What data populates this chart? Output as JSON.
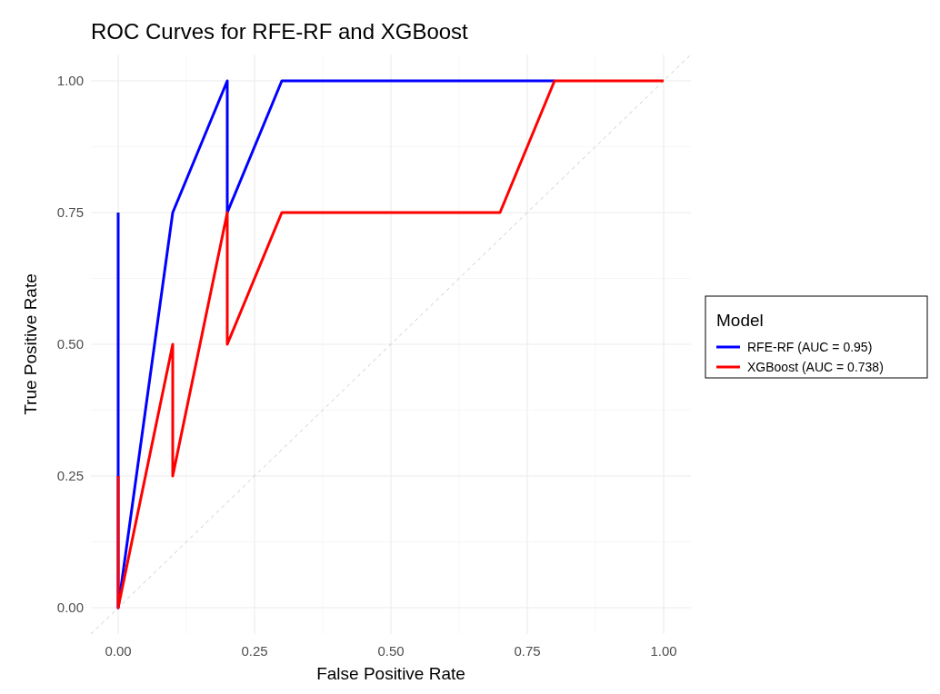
{
  "chart_data": {
    "type": "line",
    "title": "ROC Curves for RFE-RF and XGBoost",
    "xlabel": "False Positive Rate",
    "ylabel": "True Positive Rate",
    "legend_title": "Model",
    "legend": "right",
    "grid": true,
    "xlim": [
      -0.05,
      1.05
    ],
    "ylim": [
      -0.05,
      1.05
    ],
    "xticks": [
      {
        "value": 0,
        "label": "0.00"
      },
      {
        "value": 0.25,
        "label": "0.25"
      },
      {
        "value": 0.5,
        "label": "0.50"
      },
      {
        "value": 0.75,
        "label": "0.75"
      },
      {
        "value": 1,
        "label": "1.00"
      }
    ],
    "yticks": [
      {
        "value": 0,
        "label": "0.00"
      },
      {
        "value": 0.25,
        "label": "0.25"
      },
      {
        "value": 0.5,
        "label": "0.50"
      },
      {
        "value": 0.75,
        "label": "0.75"
      },
      {
        "value": 1,
        "label": "1.00"
      }
    ],
    "series": [
      {
        "color": "#bebebe",
        "line_style": "dashed",
        "x": [
          -0.05,
          1.05
        ],
        "values": [
          -0.05,
          1.05
        ]
      },
      {
        "name": "RFE-RF (AUC = 0.95)",
        "color": "#0000ff",
        "x": [
          0,
          0,
          0.1,
          0.2,
          0.2,
          0.3,
          0.8
        ],
        "values": [
          0.75,
          0,
          0.75,
          1,
          0.75,
          1,
          1
        ]
      },
      {
        "name": "XGBoost (AUC = 0.738)",
        "color": "#ff0000",
        "x": [
          0,
          0,
          0.1,
          0.1,
          0.2,
          0.2,
          0.3,
          0.7,
          0.8,
          1
        ],
        "values": [
          0.25,
          0,
          0.5,
          0.25,
          0.75,
          0.5,
          0.75,
          0.75,
          1,
          1
        ]
      }
    ]
  }
}
